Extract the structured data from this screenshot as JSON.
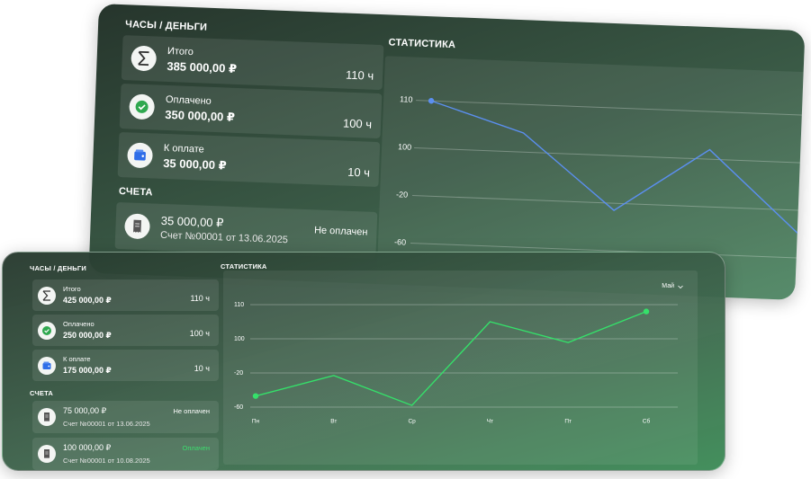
{
  "back_panel": {
    "hours_money": {
      "title": "ЧАСЫ / ДЕНЬГИ",
      "cards": [
        {
          "label": "Итого",
          "amount": "385 000,00 ₽",
          "hours": "110 ч",
          "icon": "sum"
        },
        {
          "label": "Оплачено",
          "amount": "350 000,00 ₽",
          "hours": "100 ч",
          "icon": "check"
        },
        {
          "label": "К оплате",
          "amount": "35 000,00 ₽",
          "hours": "10 ч",
          "icon": "wallet"
        }
      ]
    },
    "accounts": {
      "title": "СЧЕТА",
      "items": [
        {
          "amount": "35 000,00 ₽",
          "number": "Счет №00001 от 13.06.2025",
          "status": "Не оплачен",
          "status_color": "#ffffff"
        }
      ]
    },
    "statistics": {
      "title": "СТАТИСТИКА",
      "chart": {
        "type": "line",
        "color": "#5b8ff0",
        "yticks": [
          110,
          100,
          -20,
          -60
        ],
        "ylim": [
          -60,
          110
        ],
        "values": [
          110,
          104,
          -26,
          102,
          -41
        ],
        "markers": [
          0
        ]
      }
    }
  },
  "front_panel": {
    "hours_money": {
      "title": "ЧАСЫ / ДЕНЬГИ",
      "cards": [
        {
          "label": "Итого",
          "amount": "425 000,00 ₽",
          "hours": "110 ч",
          "icon": "sum"
        },
        {
          "label": "Оплачено",
          "amount": "250 000,00 ₽",
          "hours": "100 ч",
          "icon": "check"
        },
        {
          "label": "К оплате",
          "amount": "175 000,00 ₽",
          "hours": "10 ч",
          "icon": "wallet"
        }
      ]
    },
    "accounts": {
      "title": "СЧЕТА",
      "items": [
        {
          "amount": "75 000,00 ₽",
          "number": "Счет №00001 от 13.06.2025",
          "status": "Не оплачен",
          "status_color": "#ffffff"
        },
        {
          "amount": "100 000,00 ₽",
          "number": "Счет №00001 от 10.08.2025",
          "status": "Оплачен",
          "status_color": "#3ddc6e"
        }
      ]
    },
    "statistics": {
      "title": "СТАТИСТИКА",
      "period": "Май",
      "chart": {
        "type": "line",
        "color": "#35e06a",
        "categories": [
          "Пн",
          "Вт",
          "Ср",
          "Чт",
          "Пт",
          "Сб"
        ],
        "yticks": [
          110,
          100,
          -20,
          -60
        ],
        "ylim": [
          -60,
          110
        ],
        "values": [
          -47,
          -23,
          -58,
          105,
          87,
          108
        ],
        "markers": [
          0,
          5
        ]
      }
    }
  }
}
